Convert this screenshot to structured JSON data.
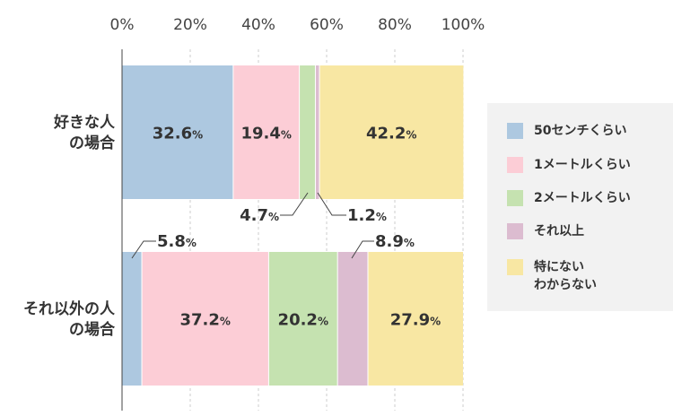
{
  "chart_data": {
    "type": "bar",
    "orientation": "horizontal",
    "stacked": true,
    "percent_stacked": true,
    "categories": [
      "好きな人\nの場合",
      "それ以外の人\nの場合"
    ],
    "series": [
      {
        "name": "50センチくらい",
        "color": "#adc8e0",
        "values": [
          32.6,
          5.8
        ]
      },
      {
        "name": "1メートルくらい",
        "color": "#fccdd6",
        "values": [
          19.4,
          37.2
        ]
      },
      {
        "name": "2メートルくらい",
        "color": "#c5e2b0",
        "values": [
          4.7,
          20.2
        ]
      },
      {
        "name": "それ以上",
        "color": "#dcbcd0",
        "values": [
          1.2,
          8.9
        ]
      },
      {
        "name": "特にない\nわからない",
        "color": "#f8e7a3",
        "values": [
          42.2,
          27.9
        ]
      }
    ],
    "x_ticks": [
      "0%",
      "20%",
      "40%",
      "60%",
      "80%",
      "100%"
    ],
    "xlim": [
      0,
      100
    ],
    "value_suffix": "%",
    "grid": "vertical-dashed",
    "legend_position": "right",
    "title": "",
    "xlabel": "",
    "ylabel": ""
  }
}
